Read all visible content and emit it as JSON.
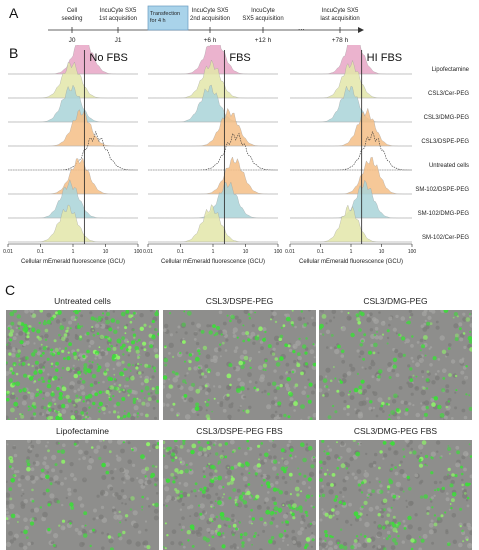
{
  "panels": {
    "a": "A",
    "b": "B",
    "c": "C"
  },
  "timeline": {
    "events": [
      {
        "top": "Cell\nseeding",
        "bottom": "J0"
      },
      {
        "top": "IncuCyte SX5\n1st acquisition",
        "bottom": "J1"
      },
      {
        "top": "IncuCyte SX5\n2nd acquisition",
        "bottom": "+6 h"
      },
      {
        "top": "IncuCyte\nSX5 acquisition",
        "bottom": "+12 h"
      },
      {
        "top": "IncuCyte SX5\nlast acquisition",
        "bottom": "+78 h"
      }
    ],
    "box": "Transfection\nfor 4 h",
    "ellipsis": "..."
  },
  "histograms": {
    "panel_titles": [
      "No FBS",
      "FBS",
      "HI FBS"
    ],
    "x_label": "Cellular mEmerald fluorescence (GCU)",
    "x_ticks": [
      "0.01",
      "0.1",
      "1",
      "10",
      "100"
    ],
    "rows": [
      "Lipofectamine",
      "CSL3/Cer-PEG",
      "CSL3/DMG-PEG",
      "CSL3/DSPE-PEG",
      "Untreated cells",
      "SM-102/DSPE-PEG",
      "SM-102/DMG-PEG",
      "SM-102/Cer-PEG"
    ],
    "colors": [
      "#e8a6c6",
      "#e3e6a9",
      "#a9d3d8",
      "#f4be86",
      "#ffffff",
      "#f4be86",
      "#a9d3d8",
      "#e3e6a9"
    ]
  },
  "micrographs": [
    {
      "label": "Untreated cells",
      "intensity": 0.95
    },
    {
      "label": "CSL3/DSPE-PEG",
      "intensity": 0.35
    },
    {
      "label": "CSL3/DMG-PEG",
      "intensity": 0.3
    },
    {
      "label": "Lipofectamine",
      "intensity": 0.2
    },
    {
      "label": "CSL3/DSPE-PEG FBS",
      "intensity": 0.55
    },
    {
      "label": "CSL3/DMG-PEG FBS",
      "intensity": 0.4
    }
  ]
}
